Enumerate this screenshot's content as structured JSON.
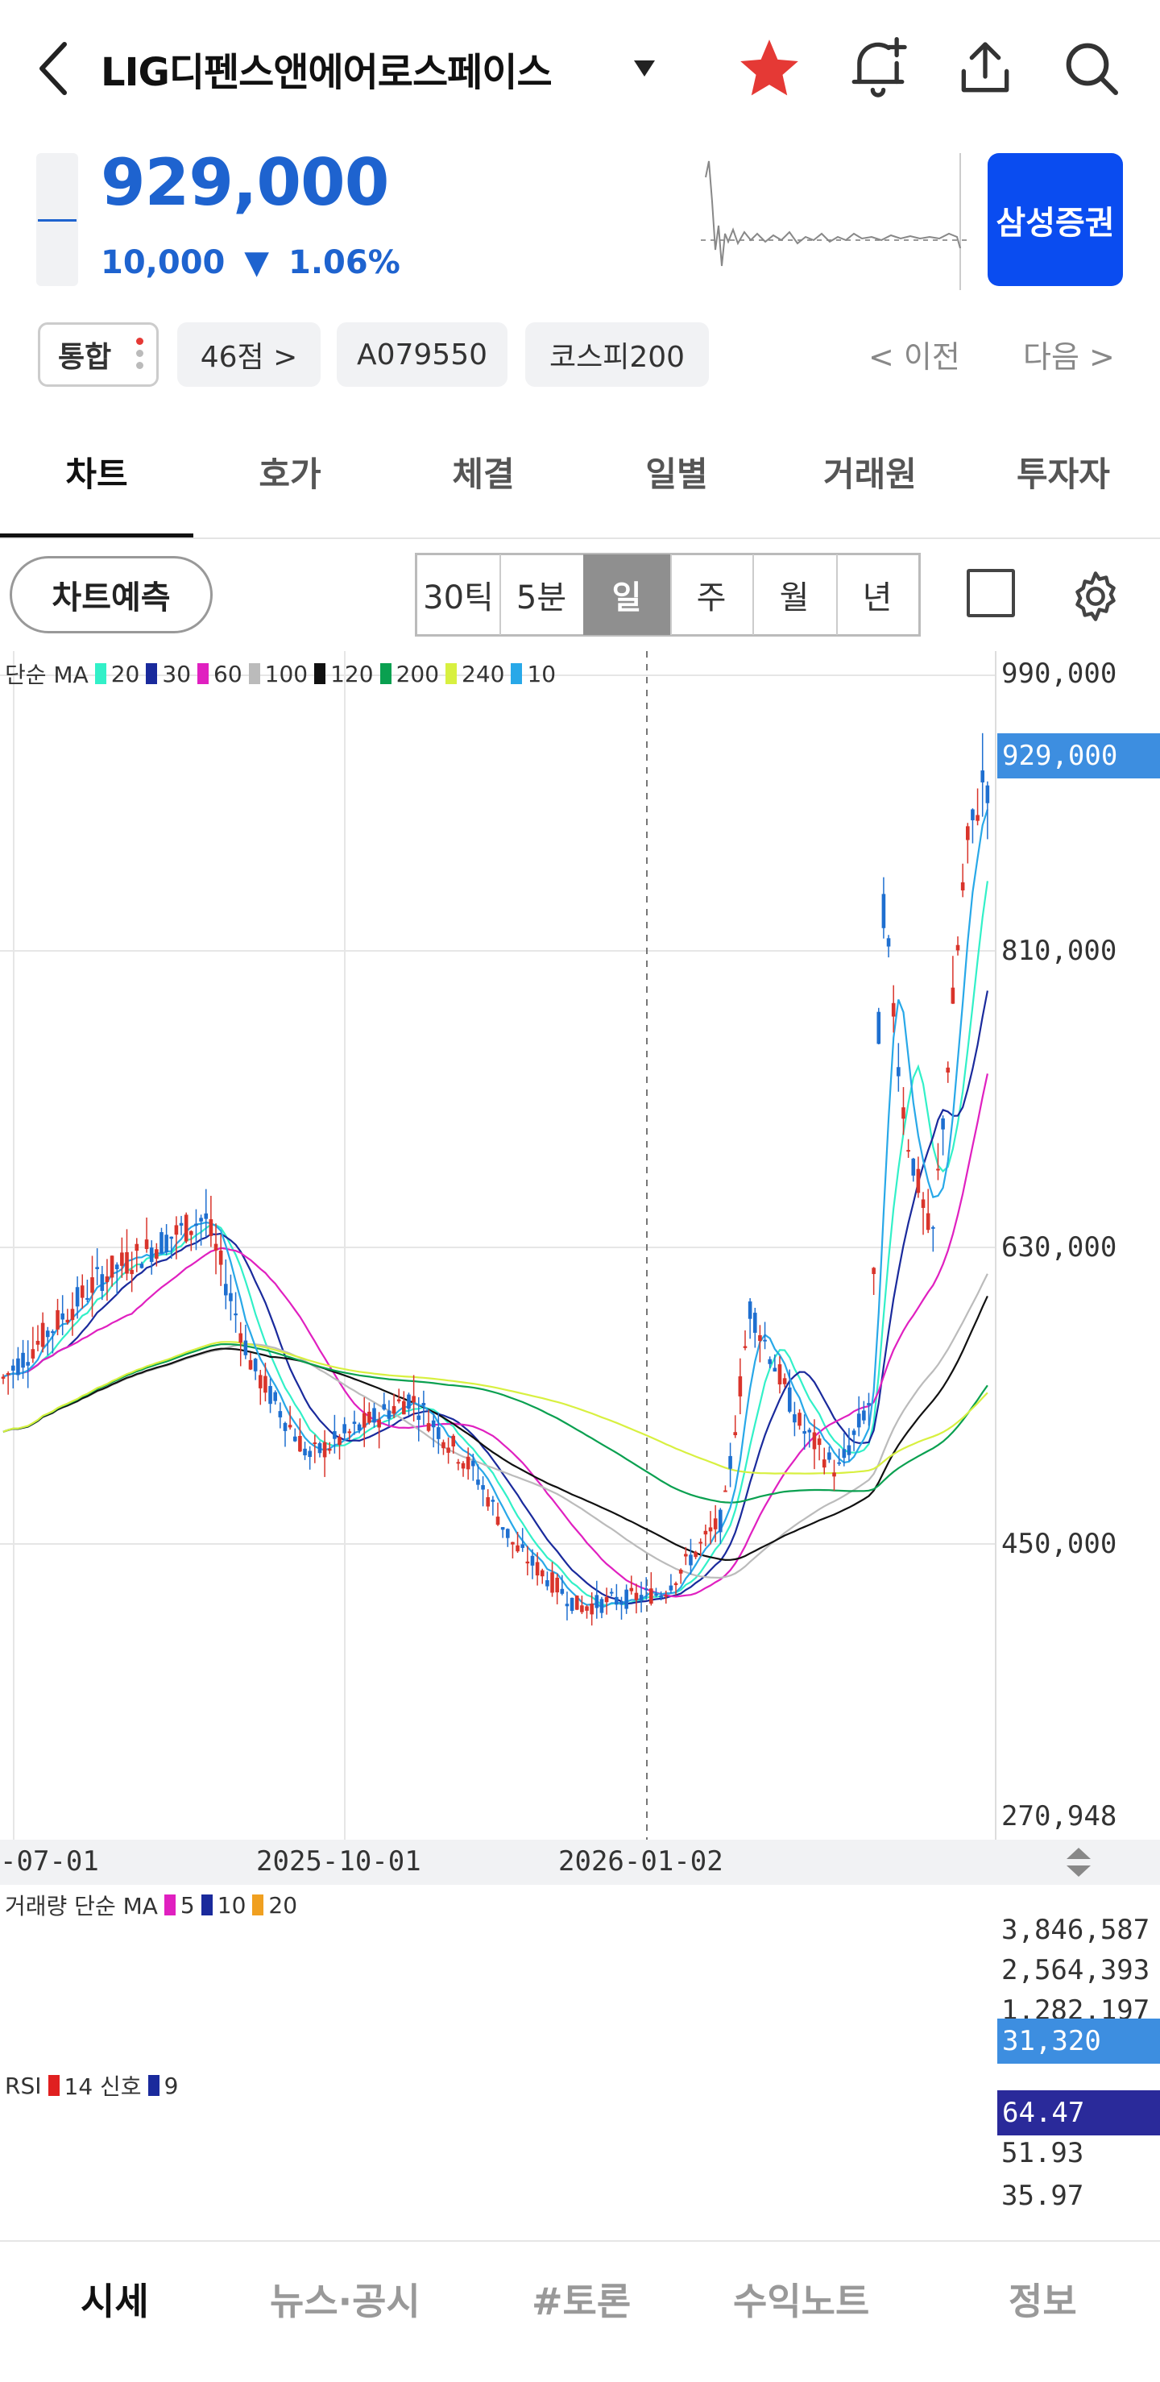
{
  "header": {
    "stock_name": "LIG디펜스앤에어로스페이스",
    "broker_button": "삼성증권"
  },
  "quote": {
    "price": "929,000",
    "change": "10,000",
    "change_pct": "1.06%",
    "direction_symbol": "▼"
  },
  "info_pills": {
    "integrated": "통합",
    "score": "46점 >",
    "code": "A079550",
    "index": "코스피200",
    "prev": "< 이전",
    "next": "다음 >"
  },
  "tabs": [
    "차트",
    "호가",
    "체결",
    "일별",
    "거래원",
    "투자자"
  ],
  "chart_toolbar": {
    "forecast": "차트예측",
    "periods": [
      "30틱",
      "5분",
      "일",
      "주",
      "월",
      "년"
    ],
    "selected": "일"
  },
  "price_legend": {
    "prefix": "단순 MA",
    "items": [
      {
        "label": "20",
        "color": "#32f0c8"
      },
      {
        "label": "30",
        "color": "#1a2a9c"
      },
      {
        "label": "60",
        "color": "#e020c0"
      },
      {
        "label": "100",
        "color": "#bbbbbb"
      },
      {
        "label": "120",
        "color": "#111111"
      },
      {
        "label": "200",
        "color": "#0aa050"
      },
      {
        "label": "240",
        "color": "#d8f040"
      },
      {
        "label": "10",
        "color": "#28a8e8"
      }
    ]
  },
  "price_axis": {
    "labels": [
      "990,000",
      "810,000",
      "630,000",
      "450,000",
      "270,948"
    ],
    "current_tag": "929,000"
  },
  "x_axis": [
    "-07-01",
    "2025-10-01",
    "2026-01-02"
  ],
  "volume_legend": {
    "prefix": "거래량 단순 MA",
    "items": [
      {
        "label": "5",
        "color": "#e020c0"
      },
      {
        "label": "10",
        "color": "#1a2a9c"
      },
      {
        "label": "20",
        "color": "#f0a020"
      }
    ]
  },
  "volume_axis": {
    "labels": [
      "3,846,587",
      "2,564,393",
      "1,282,197"
    ],
    "current_tag": "31,320"
  },
  "rsi_legend": {
    "prefix": "RSI",
    "items": [
      {
        "label": "14 신호",
        "color": "#e02020"
      },
      {
        "label": "9",
        "color": "#1a2a9c"
      }
    ]
  },
  "rsi_axis": {
    "labels": [
      "51.93",
      "35.97"
    ],
    "current_tag": "64.47"
  },
  "bottom_nav": [
    "시세",
    "뉴스·공시",
    "#토론",
    "수익노트",
    "정보"
  ],
  "colors": {
    "accent_blue": "#1e63cf",
    "broker_blue": "#0a4cf0",
    "up_red": "#d9342b",
    "down_blue": "#1e6fd0",
    "star_red": "#e53935",
    "tag_blue": "#3d8ee0",
    "rsi_tag": "#2a2a9a"
  },
  "chart_data": {
    "type": "candlestick",
    "x_start": "2025-06",
    "x_end": "2026-03",
    "ylim": [
      270948,
      1000000
    ],
    "current_price": 929000,
    "path_keypoints": [
      [
        "2025-06",
        530000
      ],
      [
        "2025-07-01",
        600000
      ],
      [
        "2025-08",
        640000
      ],
      [
        "2025-08-15",
        540000
      ],
      [
        "2025-09",
        480000
      ],
      [
        "2025-10-01",
        520000
      ],
      [
        "2025-10-20",
        470000
      ],
      [
        "2025-11",
        420000
      ],
      [
        "2025-11-20",
        380000
      ],
      [
        "2025-12-15",
        390000
      ],
      [
        "2026-01-02",
        440000
      ],
      [
        "2026-01-10",
        580000
      ],
      [
        "2026-01-25",
        500000
      ],
      [
        "2026-02-05",
        470000
      ],
      [
        "2026-02-15",
        520000
      ],
      [
        "2026-02-18",
        860000
      ],
      [
        "2026-02-25",
        700000
      ],
      [
        "2026-03-05",
        620000
      ],
      [
        "2026-03-15",
        880000
      ],
      [
        "2026-03-20",
        929000
      ]
    ]
  }
}
